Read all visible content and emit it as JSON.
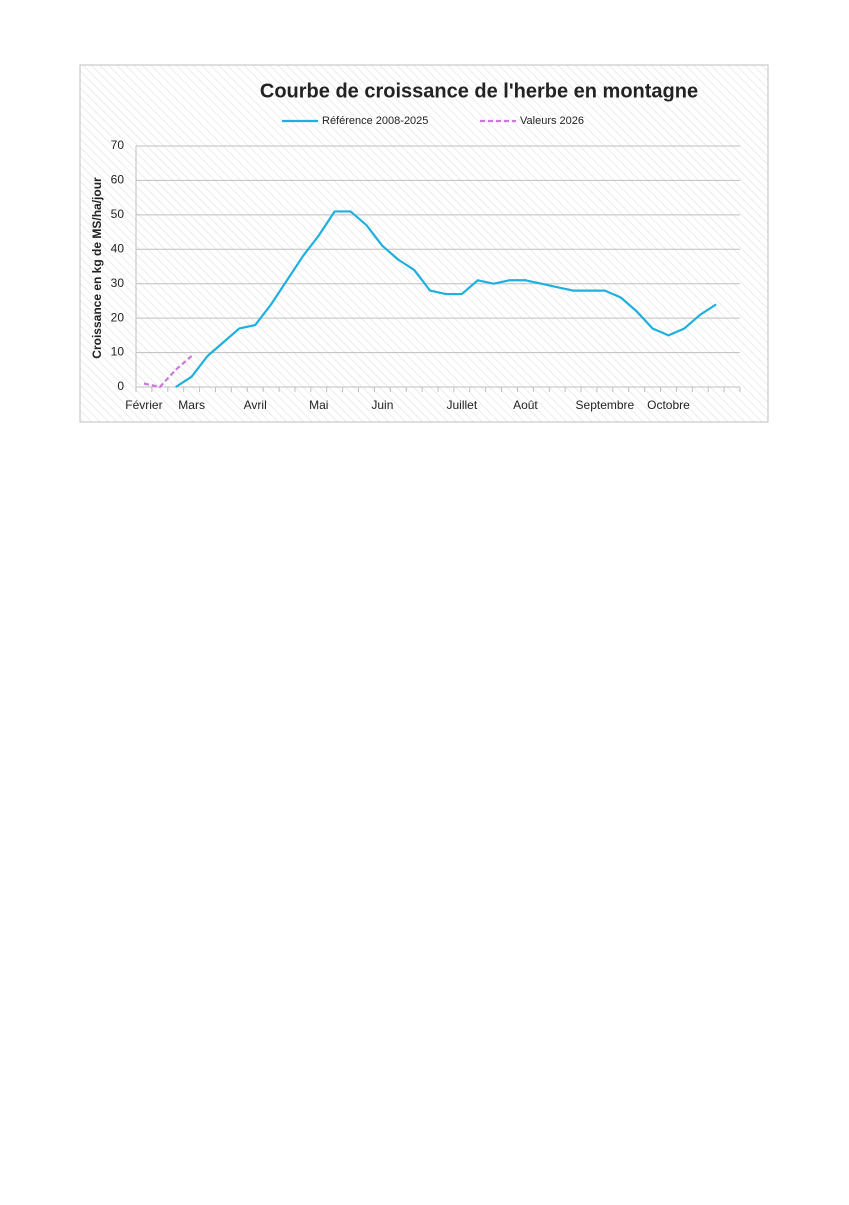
{
  "chart_data": {
    "type": "line",
    "title": "Courbe de croissance de l'herbe en montagne",
    "y_label": "Croissance en kg de MS/ha/jour",
    "categories": [
      "Février",
      null,
      null,
      "Mars",
      null,
      null,
      null,
      "Avril",
      null,
      null,
      null,
      "Mai",
      null,
      null,
      null,
      "Juin",
      null,
      null,
      null,
      null,
      "Juillet",
      null,
      null,
      null,
      "Août",
      null,
      null,
      null,
      null,
      "Septembre",
      null,
      null,
      null,
      "Octobre",
      null,
      null,
      null,
      null
    ],
    "series": [
      {
        "name": "Référence 2008-2025",
        "color": "#1fb0dd",
        "dashed": false,
        "values": [
          null,
          null,
          0,
          3,
          9,
          13,
          17,
          18,
          24,
          31,
          38,
          44,
          51,
          51,
          47,
          41,
          37,
          34,
          28,
          27,
          27,
          31,
          30,
          31,
          31,
          30,
          29,
          28,
          28,
          28,
          26,
          22,
          17,
          15,
          17,
          21,
          24,
          null
        ]
      },
      {
        "name": "Valeurs 2026",
        "color": "#cc77dd",
        "dashed": true,
        "values": [
          1,
          0,
          5,
          9,
          null,
          null,
          null,
          null,
          null,
          null,
          null,
          null,
          null,
          null,
          null,
          null,
          null,
          null,
          null,
          null,
          null,
          null,
          null,
          null,
          null,
          null,
          null,
          null,
          null,
          null,
          null,
          null,
          null,
          null,
          null,
          null,
          null,
          null
        ]
      }
    ],
    "ylim": [
      0,
      70
    ],
    "yticks": [
      0,
      10,
      20,
      30,
      40,
      50,
      60,
      70
    ],
    "grid": true
  }
}
